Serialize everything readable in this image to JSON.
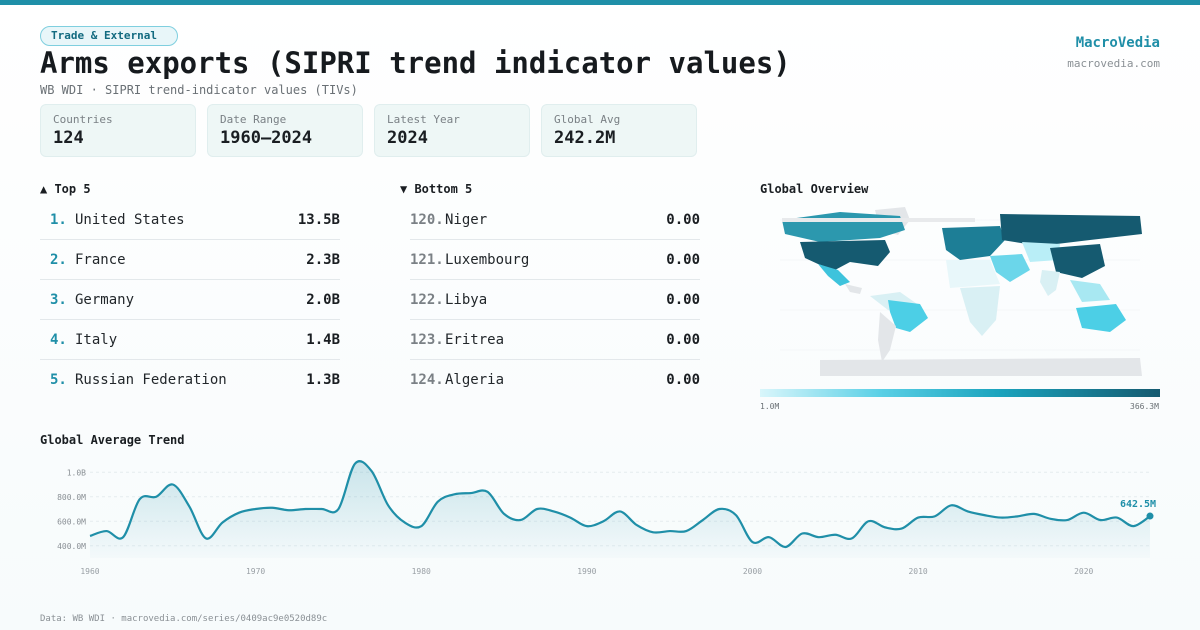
{
  "header": {
    "category": "Trade & External",
    "title": "Arms exports (SIPRI trend indicator values)",
    "subtitle": "WB WDI · SIPRI trend-indicator values (TIVs)",
    "brand_name": "MacroVedia",
    "brand_url": "macrovedia.com"
  },
  "stats": [
    {
      "label": "Countries",
      "value": "124"
    },
    {
      "label": "Date Range",
      "value": "1960–2024"
    },
    {
      "label": "Latest Year",
      "value": "2024"
    },
    {
      "label": "Global Avg",
      "value": "242.2M"
    }
  ],
  "top5": {
    "heading": "▲ Top 5",
    "items": [
      {
        "rank": "1.",
        "name": "United States",
        "value": "13.5B"
      },
      {
        "rank": "2.",
        "name": "France",
        "value": "2.3B"
      },
      {
        "rank": "3.",
        "name": "Germany",
        "value": "2.0B"
      },
      {
        "rank": "4.",
        "name": "Italy",
        "value": "1.4B"
      },
      {
        "rank": "5.",
        "name": "Russian Federation",
        "value": "1.3B"
      }
    ]
  },
  "bottom5": {
    "heading": "▼ Bottom 5",
    "items": [
      {
        "rank": "120.",
        "name": "Niger",
        "value": "0.00"
      },
      {
        "rank": "121.",
        "name": "Luxembourg",
        "value": "0.00"
      },
      {
        "rank": "122.",
        "name": "Libya",
        "value": "0.00"
      },
      {
        "rank": "123.",
        "name": "Eritrea",
        "value": "0.00"
      },
      {
        "rank": "124.",
        "name": "Algeria",
        "value": "0.00"
      }
    ]
  },
  "map": {
    "heading": "Global Overview",
    "legend_min": "1.0M",
    "legend_max": "366.3M",
    "colors": {
      "low": "#d9f6fb",
      "mid": "#1aa3bd",
      "high": "#155a70",
      "nodata": "#e3e6e9"
    }
  },
  "trend": {
    "heading": "Global Average Trend",
    "latest_label": "642.5M"
  },
  "chart_data": {
    "type": "area",
    "title": "Global Average Trend",
    "xlabel": "",
    "ylabel": "",
    "xlim": [
      1960,
      2024
    ],
    "ylim": [
      300,
      1100
    ],
    "y_ticks": [
      400,
      600,
      800,
      1000
    ],
    "y_tick_labels": [
      "400.0M",
      "600.0M",
      "800.0M",
      "1.0B"
    ],
    "x_ticks": [
      1960,
      1970,
      1980,
      1990,
      2000,
      2010,
      2020
    ],
    "x": [
      1960,
      1961,
      1962,
      1963,
      1964,
      1965,
      1966,
      1967,
      1968,
      1969,
      1970,
      1971,
      1972,
      1973,
      1974,
      1975,
      1976,
      1977,
      1978,
      1979,
      1980,
      1981,
      1982,
      1983,
      1984,
      1985,
      1986,
      1987,
      1988,
      1989,
      1990,
      1991,
      1992,
      1993,
      1994,
      1995,
      1996,
      1997,
      1998,
      1999,
      2000,
      2001,
      2002,
      2003,
      2004,
      2005,
      2006,
      2007,
      2008,
      2009,
      2010,
      2011,
      2012,
      2013,
      2014,
      2015,
      2016,
      2017,
      2018,
      2019,
      2020,
      2021,
      2022,
      2023,
      2024
    ],
    "values": [
      480,
      520,
      470,
      780,
      800,
      900,
      720,
      460,
      590,
      670,
      700,
      710,
      690,
      700,
      700,
      700,
      1070,
      1010,
      730,
      590,
      560,
      760,
      820,
      830,
      840,
      660,
      610,
      700,
      680,
      630,
      560,
      600,
      680,
      570,
      510,
      520,
      520,
      610,
      700,
      650,
      430,
      470,
      390,
      500,
      470,
      490,
      460,
      600,
      550,
      540,
      630,
      640,
      730,
      680,
      650,
      630,
      640,
      660,
      620,
      610,
      670,
      610,
      630,
      560,
      642.5
    ],
    "series_color": "#1f8fa8",
    "latest": {
      "x": 2024,
      "value": 642.5,
      "label": "642.5M"
    }
  },
  "footer": "Data: WB WDI · macrovedia.com/series/0409ac9e0520d89c"
}
